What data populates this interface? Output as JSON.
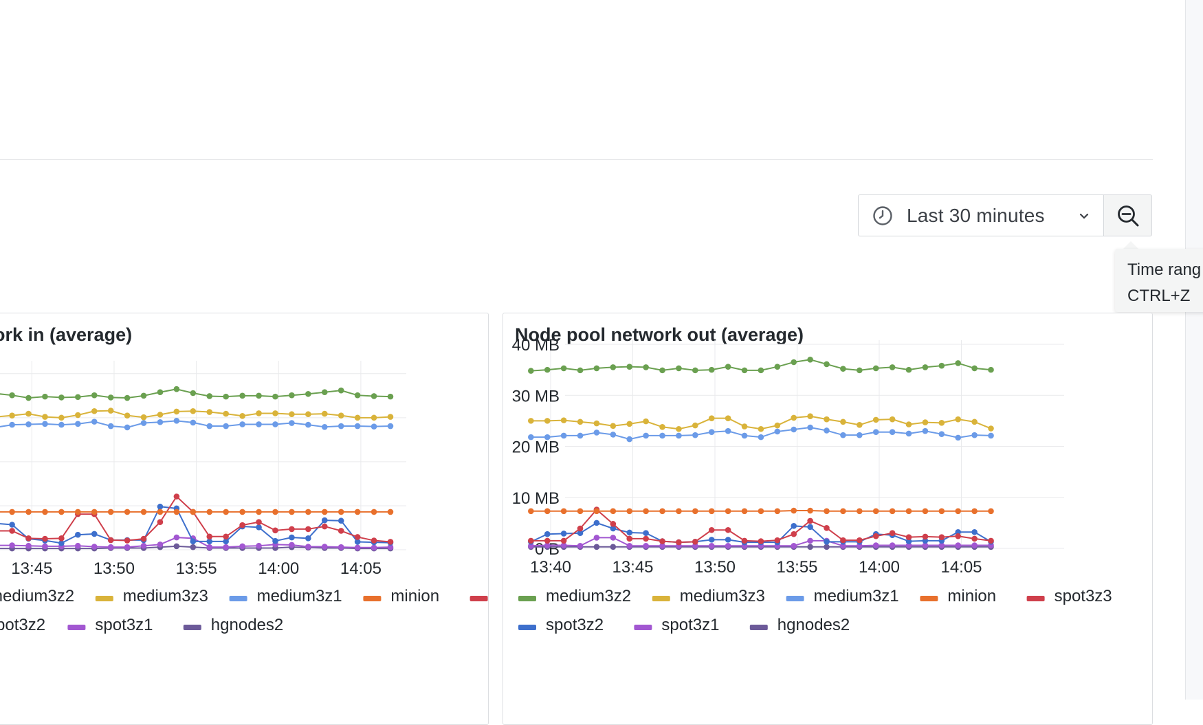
{
  "time_picker": {
    "range_label": "Last 30 minutes",
    "clock_icon": "clock-icon",
    "chevron_icon": "chevron-down-icon",
    "zoom_icon": "zoom-out-icon"
  },
  "tooltip": {
    "line1": "Time rang",
    "line2": "CTRL+Z"
  },
  "colors": {
    "medium3z2": "#6aa050",
    "medium3z3": "#d9b33a",
    "medium3z1": "#6b9be8",
    "minion": "#e8702c",
    "spot3z3": "#cf3f4b",
    "spot3z2": "#3d6fcc",
    "spot3z1": "#a257d1",
    "hgnodes2": "#6c5a99"
  },
  "chart_data": [
    {
      "type": "line",
      "title": "ork in (average)",
      "xlabel": "",
      "ylabel": "",
      "x_ticks": [
        "13:45",
        "13:50",
        "13:55",
        "14:00",
        "14:05"
      ],
      "x_tick_minutes": [
        45,
        50,
        55,
        60,
        65
      ],
      "x": [
        40.8,
        41.8,
        42.8,
        43.8,
        44.8,
        45.8,
        46.8,
        47.8,
        48.8,
        49.8,
        50.8,
        51.8,
        52.8,
        53.8,
        54.8,
        55.8,
        56.8,
        57.8,
        58.8,
        59.8,
        60.8,
        61.8,
        62.8,
        63.8,
        64.8,
        65.8,
        66.8
      ],
      "ylim": [
        0,
        42
      ],
      "grid": true,
      "legend": "bottom",
      "series": [
        {
          "name": "medium3z2",
          "values": [
            35,
            35.2,
            35.5,
            35.1,
            34.5,
            34.8,
            34.6,
            34.7,
            35.1,
            34.6,
            34.5,
            35.0,
            35.8,
            36.5,
            35.6,
            34.9,
            34.8,
            35.0,
            35.0,
            34.8,
            35.1,
            35.4,
            35.8,
            36.2,
            35.1,
            34.9,
            34.8
          ]
        },
        {
          "name": "medium3z3",
          "values": [
            31,
            30.8,
            30.2,
            30.5,
            30.9,
            30.2,
            30.0,
            30.6,
            31.5,
            31.6,
            30.5,
            30.1,
            30.7,
            31.4,
            31.5,
            31.3,
            30.9,
            30.4,
            31.0,
            31.0,
            30.8,
            30.8,
            30.9,
            30.5,
            30.0,
            30.0,
            30.2
          ]
        },
        {
          "name": "medium3z1",
          "values": [
            28,
            28.2,
            27.8,
            28.4,
            28.5,
            28.6,
            28.4,
            28.6,
            29.1,
            28.1,
            27.8,
            28.8,
            29.0,
            29.3,
            28.9,
            28.1,
            28.1,
            28.5,
            28.5,
            28.5,
            28.8,
            28.4,
            27.9,
            28.1,
            28.1,
            28.0,
            28.1
          ]
        },
        {
          "name": "minion",
          "values": [
            8.6,
            8.6,
            8.6,
            8.6,
            8.6,
            8.6,
            8.6,
            8.6,
            8.6,
            8.6,
            8.6,
            8.6,
            8.6,
            8.6,
            8.6,
            8.6,
            8.6,
            8.6,
            8.6,
            8.6,
            8.6,
            8.6,
            8.6,
            8.6,
            8.6,
            8.6,
            8.6
          ]
        },
        {
          "name": "spot3z3",
          "values": [
            12,
            11.5,
            4.3,
            4.3,
            2.6,
            2.5,
            2.6,
            8.1,
            8.1,
            2.2,
            2.1,
            2.5,
            6.3,
            12.1,
            8.6,
            3.0,
            3.0,
            5.6,
            6.3,
            4.4,
            4.7,
            4.7,
            5.3,
            4.3,
            2.9,
            2.1,
            1.8
          ]
        },
        {
          "name": "spot3z2",
          "values": [
            9,
            7.7,
            6.0,
            5.7,
            2.5,
            2.1,
            1.5,
            3.4,
            3.6,
            2.2,
            2.2,
            2.2,
            9.8,
            9.4,
            1.9,
            1.9,
            1.9,
            5.3,
            5.1,
            2.0,
            2.8,
            2.6,
            6.7,
            6.6,
            1.8,
            1.7,
            1.6
          ]
        },
        {
          "name": "spot3z1",
          "values": [
            5,
            4.5,
            1.0,
            1.0,
            0.9,
            0.8,
            0.8,
            0.9,
            0.7,
            0.6,
            0.6,
            0.9,
            1.2,
            2.8,
            2.6,
            0.6,
            0.6,
            0.8,
            0.9,
            1.2,
            1.1,
            0.7,
            0.7,
            0.6,
            0.5,
            0.5,
            0.6
          ]
        },
        {
          "name": "hgnodes2",
          "values": [
            0.3,
            0.3,
            0.3,
            0.3,
            0.3,
            0.3,
            0.3,
            0.3,
            0.3,
            0.4,
            0.4,
            0.4,
            0.6,
            0.8,
            0.6,
            0.4,
            0.4,
            0.4,
            0.4,
            0.4,
            0.6,
            0.5,
            0.4,
            0.4,
            0.3,
            0.3,
            0.3
          ]
        }
      ]
    },
    {
      "type": "line",
      "title": "Node pool network out (average)",
      "xlabel": "",
      "ylabel": "",
      "y_unit": "MB",
      "y_ticks": [
        "0 B",
        "10 MB",
        "20 MB",
        "30 MB",
        "40 MB"
      ],
      "y_tick_values": [
        0,
        10,
        20,
        30,
        40
      ],
      "x_ticks": [
        "13:40",
        "13:45",
        "13:50",
        "13:55",
        "14:00",
        "14:05"
      ],
      "x_tick_minutes": [
        40,
        45,
        50,
        55,
        60,
        65
      ],
      "x": [
        38.8,
        39.8,
        40.8,
        41.8,
        42.8,
        43.8,
        44.8,
        45.8,
        46.8,
        47.8,
        48.8,
        49.8,
        50.8,
        51.8,
        52.8,
        53.8,
        54.8,
        55.8,
        56.8,
        57.8,
        58.8,
        59.8,
        60.8,
        61.8,
        62.8,
        63.8,
        64.8,
        65.8,
        66.8
      ],
      "ylim": [
        0,
        40
      ],
      "grid": true,
      "legend": "bottom",
      "series": [
        {
          "name": "medium3z2",
          "values": [
            34.8,
            35.0,
            35.3,
            34.9,
            35.3,
            35.5,
            35.6,
            35.5,
            34.9,
            35.3,
            34.9,
            35.0,
            35.6,
            34.9,
            34.9,
            35.6,
            36.5,
            37.0,
            36.1,
            35.2,
            34.9,
            35.3,
            35.5,
            35.0,
            35.5,
            35.8,
            36.3,
            35.3,
            35.0
          ]
        },
        {
          "name": "medium3z3",
          "values": [
            25.0,
            25.0,
            25.1,
            24.8,
            24.5,
            24.0,
            24.4,
            24.9,
            23.8,
            23.4,
            24.1,
            25.5,
            25.5,
            23.9,
            23.4,
            24.1,
            25.6,
            25.9,
            25.3,
            24.8,
            24.2,
            25.2,
            25.3,
            24.3,
            24.7,
            24.6,
            25.3,
            24.8,
            23.5
          ]
        },
        {
          "name": "medium3z1",
          "values": [
            21.8,
            21.8,
            22.1,
            22.1,
            22.7,
            22.3,
            21.4,
            22.1,
            22.1,
            22.1,
            22.2,
            22.8,
            23.0,
            22.1,
            21.8,
            22.9,
            23.3,
            23.7,
            23.1,
            22.2,
            22.2,
            22.8,
            22.8,
            22.5,
            23.0,
            22.4,
            21.7,
            22.2,
            22.1
          ]
        },
        {
          "name": "minion",
          "values": [
            7.3,
            7.3,
            7.3,
            7.3,
            7.3,
            7.3,
            7.3,
            7.3,
            7.3,
            7.3,
            7.3,
            7.3,
            7.3,
            7.3,
            7.3,
            7.3,
            7.4,
            7.4,
            7.3,
            7.3,
            7.3,
            7.3,
            7.3,
            7.3,
            7.3,
            7.3,
            7.3,
            7.3,
            7.3
          ]
        },
        {
          "name": "spot3z3",
          "values": [
            1.5,
            1.5,
            1.5,
            3.9,
            7.6,
            4.8,
            1.9,
            1.9,
            1.4,
            1.2,
            1.3,
            3.6,
            3.6,
            1.5,
            1.4,
            1.6,
            2.8,
            5.4,
            4.0,
            1.6,
            1.6,
            2.4,
            3.0,
            2.2,
            2.3,
            2.2,
            2.4,
            1.9,
            1.5
          ]
        },
        {
          "name": "spot3z2",
          "values": [
            1.3,
            2.8,
            2.9,
            3.0,
            5.0,
            3.9,
            3.1,
            3.0,
            1.4,
            1.2,
            1.3,
            1.7,
            1.7,
            1.2,
            1.2,
            1.2,
            4.4,
            4.2,
            1.3,
            1.3,
            1.3,
            2.8,
            2.6,
            1.4,
            1.5,
            1.5,
            3.2,
            3.2,
            1.3
          ]
        },
        {
          "name": "spot3z1",
          "values": [
            0.5,
            0.6,
            0.6,
            0.5,
            2.1,
            2.1,
            0.5,
            0.5,
            0.5,
            0.5,
            0.5,
            0.5,
            0.5,
            0.5,
            0.5,
            0.5,
            0.5,
            1.5,
            1.5,
            0.5,
            0.5,
            0.6,
            0.6,
            0.6,
            0.6,
            0.6,
            0.6,
            0.6,
            0.6
          ]
        },
        {
          "name": "hgnodes2",
          "values": [
            0.3,
            0.3,
            0.3,
            0.3,
            0.3,
            0.3,
            0.3,
            0.3,
            0.3,
            0.3,
            0.3,
            0.3,
            0.3,
            0.3,
            0.3,
            0.3,
            0.3,
            0.3,
            0.3,
            0.3,
            0.3,
            0.3,
            0.3,
            0.3,
            0.3,
            0.3,
            0.3,
            0.3,
            0.3
          ]
        }
      ]
    }
  ]
}
